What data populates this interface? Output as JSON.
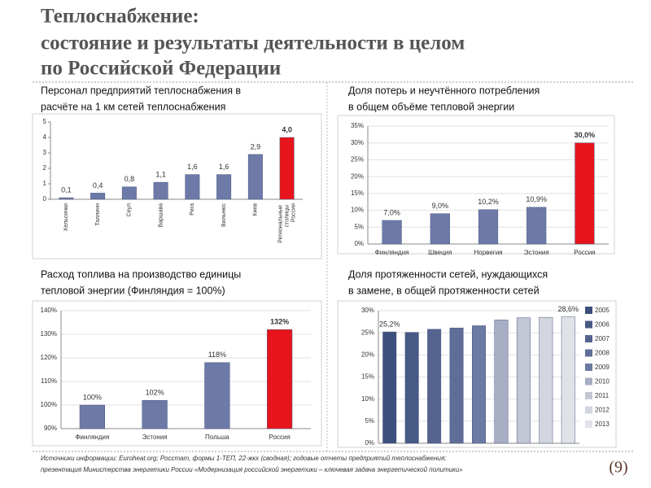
{
  "title": [
    "Теплоснабжение:",
    "состояние и результаты деятельности в целом",
    "по Российской Федерации"
  ],
  "chart_data": [
    {
      "type": "bar",
      "title": [
        "Персонал предприятий теплоснабжения в",
        "расчёте на 1 км сетей теплоснабжения"
      ],
      "categories": [
        "Хельсинки",
        "Таллинн",
        "Сеул",
        "Варшава",
        "Рига",
        "Вильнюс",
        "Киев",
        "Региональные столицы России"
      ],
      "values": [
        0.1,
        0.4,
        0.8,
        1.1,
        1.6,
        1.6,
        2.9,
        4.0
      ],
      "value_labels": [
        "0,1",
        "0,4",
        "0,8",
        "1,1",
        "1,6",
        "1,6",
        "2,9",
        "4,0"
      ],
      "colors": [
        "#6d7aa8",
        "#6d7aa8",
        "#6d7aa8",
        "#6d7aa8",
        "#6d7aa8",
        "#6d7aa8",
        "#6d7aa8",
        "#e8141b"
      ],
      "ylim": [
        0,
        5
      ],
      "yticks": [
        0,
        1,
        2,
        3,
        4,
        5
      ],
      "grid": false
    },
    {
      "type": "bar",
      "title": [
        "Доля потерь и неучтённого потребления",
        "в общем объёме тепловой энергии"
      ],
      "categories": [
        "Финляндия",
        "Швеция",
        "Норвегия",
        "Эстония",
        "Россия"
      ],
      "values": [
        7.0,
        9.0,
        10.2,
        10.9,
        30.0
      ],
      "value_labels": [
        "7,0%",
        "9,0%",
        "10,2%",
        "10,9%",
        "30,0%"
      ],
      "colors": [
        "#6d7aa8",
        "#6d7aa8",
        "#6d7aa8",
        "#6d7aa8",
        "#e8141b"
      ],
      "ylim": [
        0,
        35
      ],
      "yticks": [
        {
          "value": 0,
          "label": "0%"
        },
        {
          "value": 5,
          "label": "5%"
        },
        {
          "value": 10,
          "label": "10%"
        },
        {
          "value": 15,
          "label": "15%"
        },
        {
          "value": 20,
          "label": "20%"
        },
        {
          "value": 25,
          "label": "25%"
        },
        {
          "value": 30,
          "label": "30%"
        },
        {
          "value": 35,
          "label": "35%"
        }
      ],
      "grid": true
    },
    {
      "type": "bar",
      "title": [
        "Расход топлива на производство единицы",
        "тепловой энергии (Финляндия = 100%)"
      ],
      "categories": [
        "Финляндия",
        "Эстония",
        "Польша",
        "Россия"
      ],
      "values": [
        100,
        102,
        118,
        132
      ],
      "value_labels": [
        "100%",
        "102%",
        "118%",
        "132%"
      ],
      "colors": [
        "#6d7aa8",
        "#6d7aa8",
        "#6d7aa8",
        "#e8141b"
      ],
      "ylim": [
        90,
        140
      ],
      "yticks": [
        {
          "value": 90,
          "label": "90%"
        },
        {
          "value": 100,
          "label": "100%"
        },
        {
          "value": 110,
          "label": "110%"
        },
        {
          "value": 120,
          "label": "120%"
        },
        {
          "value": 130,
          "label": "130%"
        },
        {
          "value": 140,
          "label": "140%"
        }
      ],
      "grid": true
    },
    {
      "type": "bar",
      "title": [
        "Доля протяженности сетей, нуждающихся",
        "в замене, в общей протяженности сетей"
      ],
      "categories": [
        "2005",
        "2006",
        "2007",
        "2008",
        "2009",
        "2010",
        "2011",
        "2012",
        "2013"
      ],
      "values": [
        25.2,
        25.1,
        25.8,
        26.1,
        26.6,
        27.9,
        28.4,
        28.5,
        28.6
      ],
      "value_labels": [
        "25,2%",
        null,
        null,
        null,
        null,
        null,
        null,
        null,
        "28,6%"
      ],
      "colors": [
        "#3d4f7c",
        "#475a86",
        "#55648f",
        "#5f6e98",
        "#6b7aa2",
        "#a8aec4",
        "#c3c7d4",
        "#d3d6df",
        "#e0e2e8"
      ],
      "ylim": [
        0,
        30
      ],
      "yticks": [
        {
          "value": 0,
          "label": "0%"
        },
        {
          "value": 5,
          "label": "5%"
        },
        {
          "value": 10,
          "label": "10%"
        },
        {
          "value": 15,
          "label": "15%"
        },
        {
          "value": 20,
          "label": "20%"
        },
        {
          "value": 25,
          "label": "25%"
        },
        {
          "value": 30,
          "label": "30%"
        }
      ],
      "grid": true,
      "legend": "right"
    }
  ],
  "source": [
    "Источники информации: Euroheat.org; Росстат, формы 1-ТЕП, 22-жкх (сводная); годовые отчеты предприятий теплоснабжения;",
    "презентация Министерства энергетики России «Модернизация российской энергетики – ключевая задача энергетической политики»"
  ],
  "page_number": "(9)"
}
